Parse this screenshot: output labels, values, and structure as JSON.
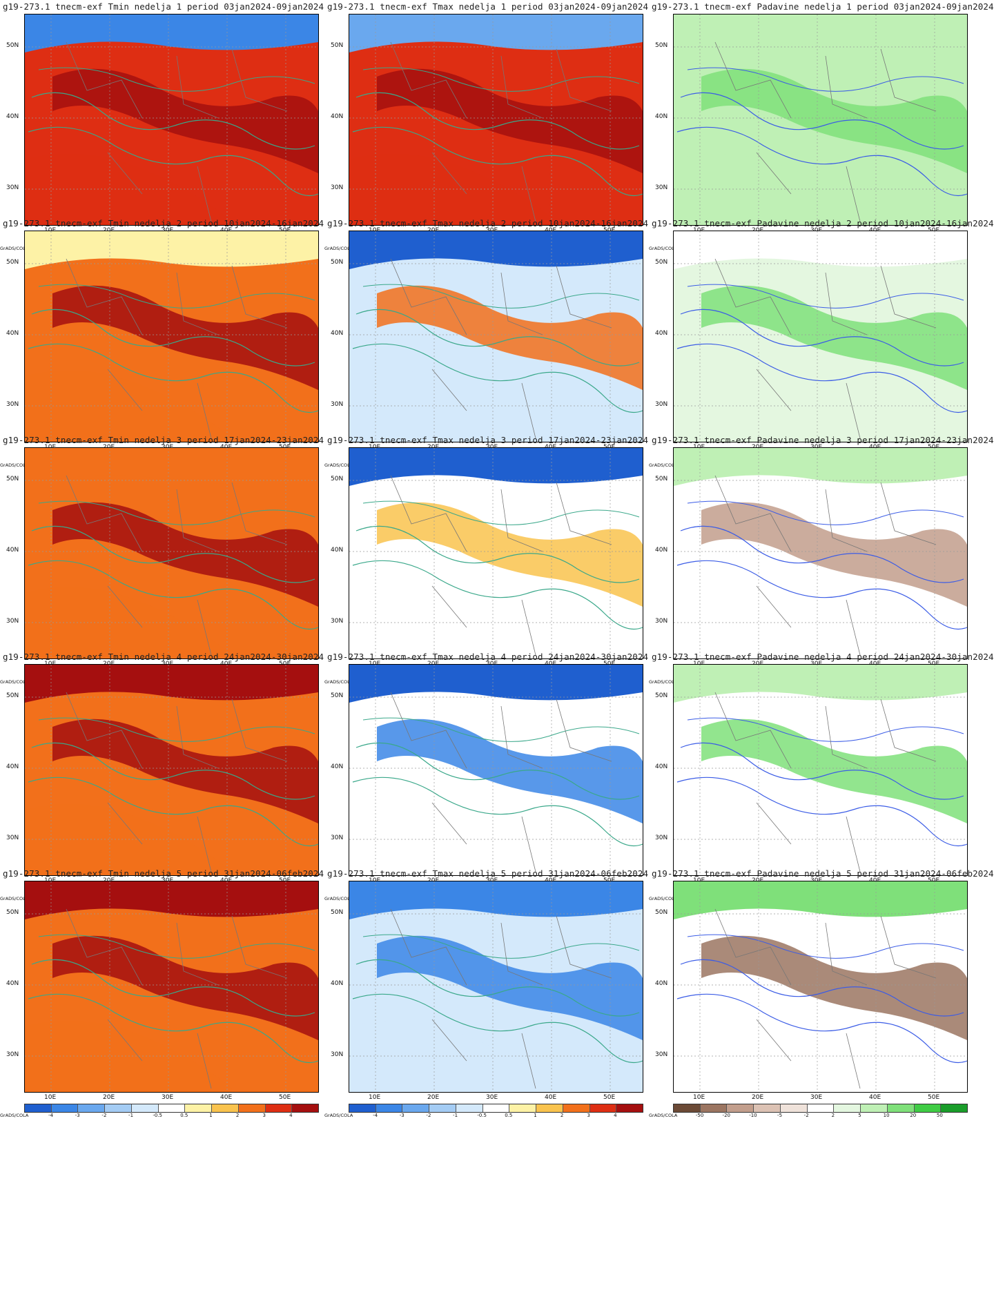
{
  "credit": "GrADS/COLA",
  "lat_labels": [
    "50N",
    "40N",
    "30N"
  ],
  "lon_labels": [
    "10E",
    "20E",
    "30E",
    "40E",
    "50E"
  ],
  "colorbars": {
    "temp": {
      "labels": [
        "-4",
        "-3",
        "-2",
        "-1",
        "-0.5",
        "0.5",
        "1",
        "2",
        "3",
        "4"
      ],
      "colors": [
        "#1f5fcf",
        "#3b86e6",
        "#6aa8ee",
        "#a4ccf4",
        "#d4e9fb",
        "#ffffff",
        "#fdf2a6",
        "#f9c34e",
        "#f2701b",
        "#de2e13",
        "#a50f0f"
      ]
    },
    "precip": {
      "labels": [
        "-50",
        "-20",
        "-10",
        "-5",
        "-2",
        "2",
        "5",
        "10",
        "20",
        "50"
      ],
      "colors": [
        "#6b4a36",
        "#9b7561",
        "#c29e8c",
        "#dcc2b4",
        "#efe2da",
        "#ffffff",
        "#e4f7e0",
        "#bff0b5",
        "#7fe07a",
        "#3fcc45",
        "#1a9d2a"
      ]
    }
  },
  "rows": [
    {
      "titles": [
        "g19-273.1 tnecm-exf Tmin nedelja 1 period 03jan2024-09jan2024",
        "g19-273.1 tnecm-exf Tmax nedelja 1 period 03jan2024-09jan2024",
        "g19-273.1 tnecm-exf Padavine nedelja 1 period 03jan2024-09jan2024"
      ]
    },
    {
      "titles": [
        "g19-273.1 tnecm-exf Tmin nedelja 2 period 10jan2024-16jan2024",
        "g19-273.1 tnecm-exf Tmax nedelja 2 period 10jan2024-16jan2024",
        "g19-273.1 tnecm-exf Padavine nedelja 2 period 10jan2024-16jan2024"
      ]
    },
    {
      "titles": [
        "g19-273.1 tnecm-exf Tmin nedelja 3 period 17jan2024-23jan2024",
        "g19-273.1 tnecm-exf Tmax nedelja 3 period 17jan2024-23jan2024",
        "g19-273.1 tnecm-exf Padavine nedelja 3 period 17jan2024-23jan2024"
      ]
    },
    {
      "titles": [
        "g19-273.1 tnecm-exf Tmin nedelja 4 period 24jan2024-30jan2024",
        "g19-273.1 tnecm-exf Tmax nedelja 4 period 24jan2024-30jan2024",
        "g19-273.1 tnecm-exf Padavine nedelja 4 period 24jan2024-30jan2024"
      ]
    },
    {
      "titles": [
        "g19-273.1 tnecm-exf Tmin nedelja 5 period 31jan2024-06feb2024",
        "g19-273.1 tnecm-exf Tmax nedelja 5 period 31jan2024-06feb2024",
        "g19-273.1 tnecm-exf Padavine nedelja 5 period 31jan2024-06feb2024"
      ]
    }
  ],
  "panel_types": [
    "temp",
    "temp",
    "precip"
  ],
  "fields": [
    [
      "#de2e13",
      "#de2e13",
      "#bff0b5"
    ],
    [
      "#f2701b",
      "#d4e9fb",
      "#e4f7e0"
    ],
    [
      "#f2701b",
      "#ffffff",
      "#ffffff"
    ],
    [
      "#f2701b",
      "#ffffff",
      "#ffffff"
    ],
    [
      "#f2701b",
      "#d4e9fb",
      "#ffffff"
    ]
  ],
  "accents": [
    [
      "#a50f0f",
      "#a50f0f",
      "#7fe07a"
    ],
    [
      "#a50f0f",
      "#f2701b",
      "#7fe07a"
    ],
    [
      "#a50f0f",
      "#f9c34e",
      "#c29e8c"
    ],
    [
      "#a50f0f",
      "#3b86e6",
      "#7fe07a"
    ],
    [
      "#a50f0f",
      "#3b86e6",
      "#9b7561"
    ]
  ],
  "tops": [
    [
      "#3b86e6",
      "#6aa8ee",
      "#bff0b5"
    ],
    [
      "#fdf2a6",
      "#1f5fcf",
      "#ffffff"
    ],
    [
      "#f2701b",
      "#1f5fcf",
      "#bff0b5"
    ],
    [
      "#a50f0f",
      "#1f5fcf",
      "#bff0b5"
    ],
    [
      "#a50f0f",
      "#3b86e6",
      "#7fe07a"
    ]
  ]
}
